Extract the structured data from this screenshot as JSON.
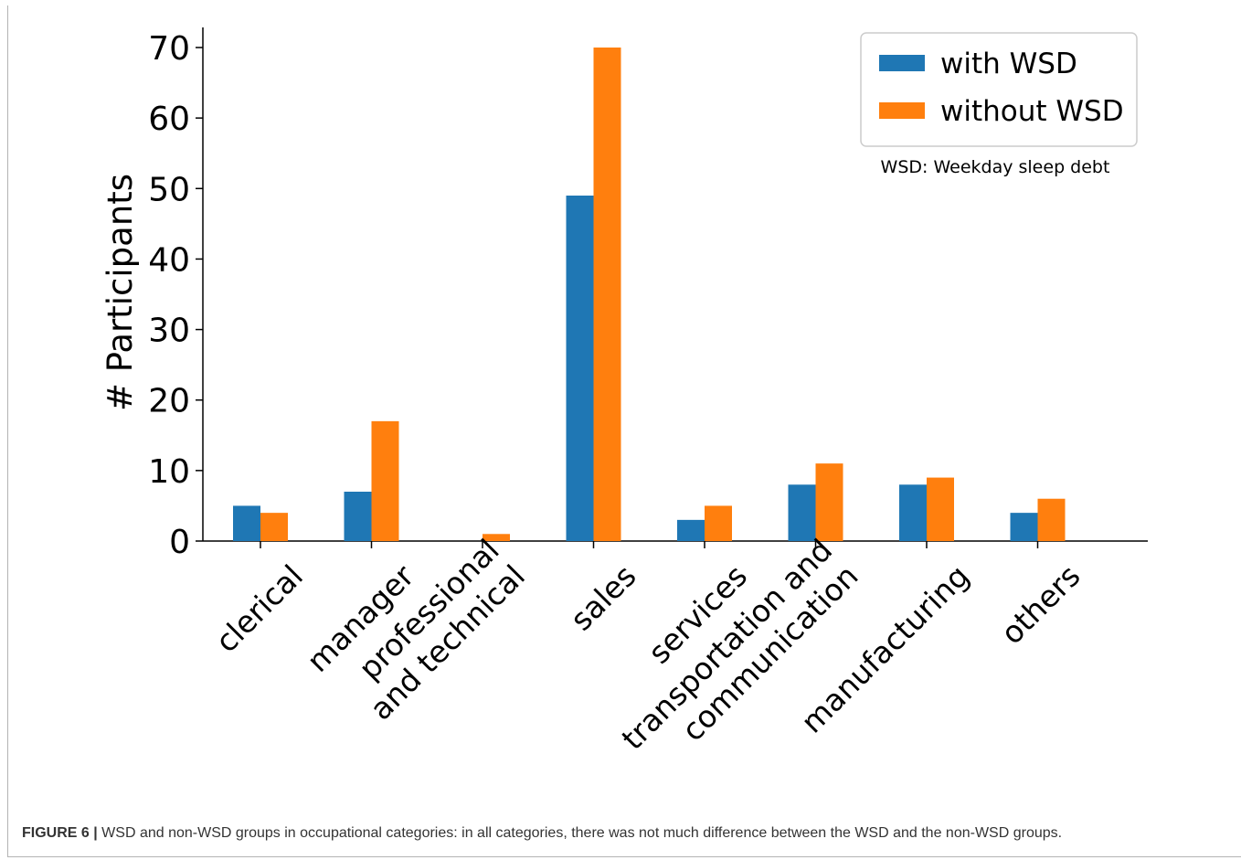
{
  "chart_data": {
    "type": "bar",
    "ylabel": "# Participants",
    "xlabel": "",
    "ylim": [
      0,
      70
    ],
    "yticks": [
      0,
      10,
      20,
      30,
      40,
      50,
      60,
      70
    ],
    "categories": [
      [
        "clerical"
      ],
      [
        "manager"
      ],
      [
        "professional",
        "and technical"
      ],
      [
        "sales"
      ],
      [
        "services"
      ],
      [
        "transportation and",
        "communication"
      ],
      [
        "manufacturing"
      ],
      [
        "others"
      ]
    ],
    "series": [
      {
        "name": "with WSD",
        "color": "#1f77b4",
        "values": [
          5,
          7,
          0,
          49,
          3,
          8,
          8,
          4
        ]
      },
      {
        "name": "without WSD",
        "color": "#ff7f0e",
        "values": [
          4,
          17,
          1,
          70,
          5,
          11,
          9,
          6
        ]
      }
    ],
    "legend_position": "top-right",
    "annotation": "WSD: Weekday sleep debt",
    "grid": false
  },
  "caption": {
    "label": "FIGURE 6 |",
    "text": " WSD and non-WSD groups in occupational categories: in all categories, there was not much difference between the WSD and the non-WSD groups."
  }
}
